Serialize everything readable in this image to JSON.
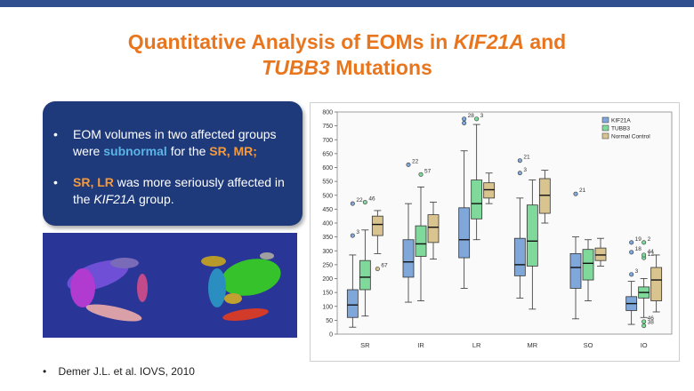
{
  "slide": {
    "title_line1_pre": "Quantitative Analysis of EOMs in ",
    "title_line1_italic": "KIF21A",
    "title_line1_post": " and",
    "title_line2_italic": "TUBB3",
    "title_line2_post": " Mutations",
    "bullet1_pre": "EOM volumes in two affected groups were ",
    "bullet1_hl": "subnormal",
    "bullet1_mid": " for the ",
    "bullet1_hl2": "SR, MR;",
    "bullet2_hl": "SR, LR",
    "bullet2_mid": " was more seriously affected in the ",
    "bullet2_italic": "KIF21A",
    "bullet2_post": " group.",
    "bullet_symbol": "•",
    "reference": "Demer J.L. et al. IOVS, 2010"
  },
  "colors": {
    "title": "#e8761e",
    "box_bg": "#1f3a7a",
    "kif21a": "#7fa7d9",
    "tubb3": "#7fd99a",
    "normal": "#d9c48f"
  },
  "chart_data": {
    "type": "boxplot",
    "categories": [
      "SR",
      "IR",
      "LR",
      "MR",
      "SO",
      "IO"
    ],
    "ylim": [
      0,
      800
    ],
    "yticks": [
      0,
      50,
      100,
      150,
      200,
      250,
      300,
      350,
      400,
      450,
      500,
      550,
      600,
      650,
      700,
      750,
      800
    ],
    "legend_position": "top-right",
    "series": [
      {
        "name": "KIF21A",
        "color": "#7fa7d9",
        "boxes": [
          {
            "min": 25,
            "q1": 60,
            "median": 105,
            "q3": 160,
            "max": 285
          },
          {
            "min": 115,
            "q1": 205,
            "median": 260,
            "q3": 340,
            "max": 470
          },
          {
            "min": 165,
            "q1": 275,
            "median": 340,
            "q3": 455,
            "max": 660
          },
          {
            "min": 130,
            "q1": 210,
            "median": 250,
            "q3": 345,
            "max": 490
          },
          {
            "min": 55,
            "q1": 165,
            "median": 240,
            "q3": 290,
            "max": 350
          },
          {
            "min": 35,
            "q1": 85,
            "median": 110,
            "q3": 135,
            "max": 190
          }
        ]
      },
      {
        "name": "TUBB3",
        "color": "#7fd99a",
        "boxes": [
          {
            "min": 65,
            "q1": 160,
            "median": 205,
            "q3": 265,
            "max": 375
          },
          {
            "min": 120,
            "q1": 280,
            "median": 325,
            "q3": 390,
            "max": 530
          },
          {
            "min": 340,
            "q1": 415,
            "median": 470,
            "q3": 555,
            "max": 755
          },
          {
            "min": 90,
            "q1": 245,
            "median": 335,
            "q3": 465,
            "max": 555
          },
          {
            "min": 120,
            "q1": 195,
            "median": 255,
            "q3": 305,
            "max": 340
          },
          {
            "min": 60,
            "q1": 130,
            "median": 150,
            "q3": 170,
            "max": 200
          }
        ]
      },
      {
        "name": "Normal Control",
        "color": "#d9c48f",
        "boxes": [
          {
            "min": 290,
            "q1": 355,
            "median": 395,
            "q3": 425,
            "max": 445
          },
          {
            "min": 270,
            "q1": 330,
            "median": 385,
            "q3": 430,
            "max": 475
          },
          {
            "min": 470,
            "q1": 490,
            "median": 520,
            "q3": 545,
            "max": 580
          },
          {
            "min": 400,
            "q1": 435,
            "median": 500,
            "q3": 560,
            "max": 590
          },
          {
            "min": 245,
            "q1": 265,
            "median": 285,
            "q3": 310,
            "max": 345
          },
          {
            "min": 80,
            "q1": 120,
            "median": 195,
            "q3": 240,
            "max": 285
          }
        ]
      }
    ],
    "outliers": [
      {
        "cat": 0,
        "series": 0,
        "value": 355,
        "label": "3"
      },
      {
        "cat": 0,
        "series": 0,
        "value": 470,
        "label": "22"
      },
      {
        "cat": 0,
        "series": 1,
        "value": 475,
        "label": "46"
      },
      {
        "cat": 0,
        "series": 2,
        "value": 235,
        "label": "67"
      },
      {
        "cat": 1,
        "series": 0,
        "value": 610,
        "label": "22"
      },
      {
        "cat": 1,
        "series": 1,
        "value": 575,
        "label": "57"
      },
      {
        "cat": 2,
        "series": 0,
        "value": 775,
        "label": "28"
      },
      {
        "cat": 2,
        "series": 0,
        "value": 760,
        "label": ""
      },
      {
        "cat": 2,
        "series": 1,
        "value": 775,
        "label": "3"
      },
      {
        "cat": 3,
        "series": 0,
        "value": 625,
        "label": "21"
      },
      {
        "cat": 3,
        "series": 0,
        "value": 580,
        "label": "3"
      },
      {
        "cat": 4,
        "series": 0,
        "value": 505,
        "label": "21"
      },
      {
        "cat": 5,
        "series": 0,
        "value": 330,
        "label": "19"
      },
      {
        "cat": 5,
        "series": 0,
        "value": 295,
        "label": "18"
      },
      {
        "cat": 5,
        "series": 1,
        "value": 330,
        "label": "2"
      },
      {
        "cat": 5,
        "series": 0,
        "value": 215,
        "label": "3"
      },
      {
        "cat": 5,
        "series": 1,
        "value": 275,
        "label": "12"
      },
      {
        "cat": 5,
        "series": 1,
        "value": 285,
        "label": "44"
      },
      {
        "cat": 5,
        "series": 1,
        "value": 45,
        "label": "46"
      },
      {
        "cat": 5,
        "series": 1,
        "value": 30,
        "label": "38"
      }
    ]
  }
}
